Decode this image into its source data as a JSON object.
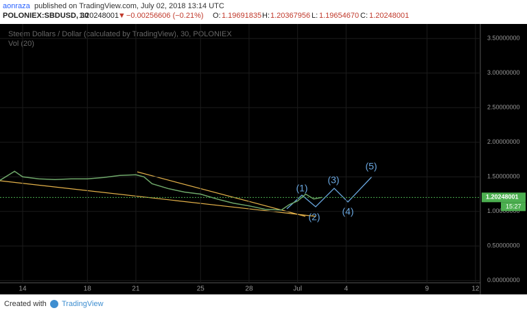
{
  "header": {
    "author": "aonraza",
    "published": "published on TradingView.com, July 02, 2018 13:14 UTC",
    "symbol": "POLONIEX:SBDUSD, 30",
    "last": "1.20248001",
    "arrow": "▼",
    "change": "−0.00256606 (−0.21%)",
    "o_label": "O:",
    "o": "1.19691835",
    "h_label": "H:",
    "h": "1.20367956",
    "l_label": "L:",
    "l": "1.19654670",
    "c_label": "C:",
    "c": "1.20248001"
  },
  "chart_data": {
    "type": "line",
    "title": "Steem Dollars / Dollar (calculated by TradingView), 30, POLONIEX",
    "subtitle": "Vol (20)",
    "series": [
      {
        "name": "SBDUSD",
        "color": "#6fa86a",
        "x": [
          12.6,
          13.5,
          14,
          15,
          16,
          17,
          18,
          19,
          20,
          21,
          21.5,
          22,
          23,
          24,
          25,
          26,
          27,
          28,
          29,
          30,
          30.5,
          31,
          31.5,
          32,
          32.5
        ],
        "values": [
          1.45,
          1.58,
          1.5,
          1.47,
          1.46,
          1.47,
          1.47,
          1.49,
          1.52,
          1.53,
          1.5,
          1.4,
          1.33,
          1.28,
          1.25,
          1.18,
          1.12,
          1.08,
          1.03,
          1.02,
          1.1,
          1.15,
          1.25,
          1.18,
          1.20248001
        ]
      }
    ],
    "xlim": [
      12.6,
      42.3
    ],
    "xticks": [
      14,
      18,
      21,
      25,
      28,
      {
        "value": 31,
        "label": "Jul"
      },
      {
        "value": 34,
        "label": "4"
      },
      {
        "value": 39,
        "label": "9"
      },
      {
        "value": 42,
        "label": "12"
      }
    ],
    "ylim": [
      -0.2,
      3.71
    ],
    "yticks": [
      {
        "value": 0,
        "label": "0.00000000"
      },
      {
        "value": 0.5,
        "label": "0.50000000"
      },
      {
        "value": 1,
        "label": "1.00000000"
      },
      {
        "value": 1.5,
        "label": "1.50000000"
      },
      {
        "value": 2,
        "label": "2.00000000"
      },
      {
        "value": 2.5,
        "label": "2.50000000"
      },
      {
        "value": 3,
        "label": "3.00000000"
      },
      {
        "value": 3.5,
        "label": "3.50000000"
      }
    ],
    "current_price": {
      "value": 1.20248001,
      "label": "1.20248001"
    },
    "countdown": "15:27",
    "annotations": [
      "(1)",
      "(2)",
      "(3)",
      "(4)",
      "(5)"
    ]
  },
  "footer": {
    "created": "Created with",
    "brand": "TradingView"
  }
}
